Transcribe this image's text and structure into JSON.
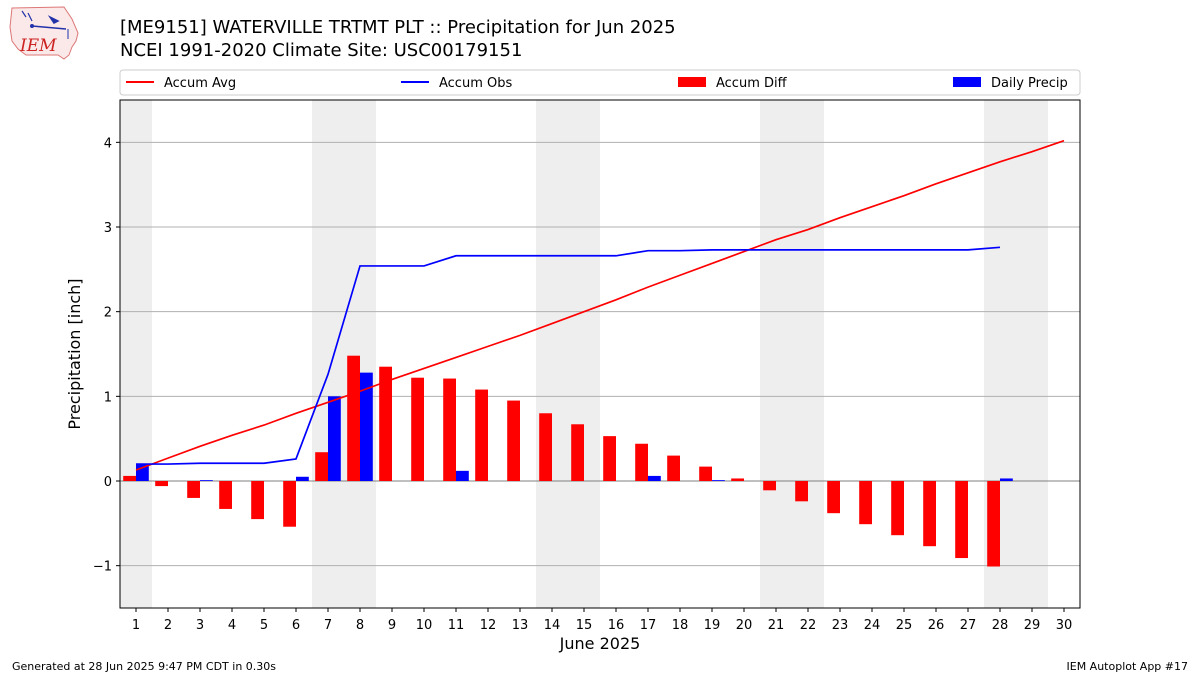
{
  "title_line1": "[ME9151] WATERVILLE TRTMT PLT :: Precipitation for Jun 2025",
  "title_line2": "NCEI 1991-2020 Climate Site: USC00179151",
  "footer_left": "Generated at 28 Jun 2025 9:47 PM CDT in 0.30s",
  "footer_right": "IEM Autoplot App #17",
  "logo_text": "IEM",
  "colors": {
    "accum_avg": "#ff0000",
    "accum_obs": "#0000ff",
    "accum_diff": "#ff0000",
    "daily_precip": "#0000ff",
    "weekend_band": "#eeeeee",
    "grid": "#b0b0b0"
  },
  "chart_data": {
    "type": "bar",
    "xlabel": "June 2025",
    "ylabel": "Precipitation [inch]",
    "xlim": [
      0.5,
      30.5
    ],
    "ylim": [
      -1.5,
      4.5
    ],
    "yticks": [
      -1,
      0,
      1,
      2,
      3,
      4
    ],
    "ytick_labels": [
      "−1",
      "0",
      "1",
      "2",
      "3",
      "4"
    ],
    "days": [
      1,
      2,
      3,
      4,
      5,
      6,
      7,
      8,
      9,
      10,
      11,
      12,
      13,
      14,
      15,
      16,
      17,
      18,
      19,
      20,
      21,
      22,
      23,
      24,
      25,
      26,
      27,
      28,
      29,
      30
    ],
    "weekend_days": [
      1,
      7,
      8,
      14,
      15,
      21,
      22,
      28,
      29
    ],
    "grid": "horizontal",
    "legend_position": "top",
    "legend": [
      "Accum Avg",
      "Accum Obs",
      "Accum Diff",
      "Daily Precip"
    ],
    "series": [
      {
        "name": "Accum Avg",
        "kind": "line",
        "values": [
          0.13,
          0.27,
          0.41,
          0.54,
          0.66,
          0.8,
          0.93,
          1.06,
          1.2,
          1.33,
          1.46,
          1.59,
          1.72,
          1.86,
          2.0,
          2.14,
          2.29,
          2.43,
          2.57,
          2.71,
          2.85,
          2.97,
          3.11,
          3.24,
          3.37,
          3.51,
          3.64,
          3.77,
          3.89,
          4.02
        ]
      },
      {
        "name": "Accum Obs",
        "kind": "line",
        "values": [
          0.2,
          0.2,
          0.21,
          0.21,
          0.21,
          0.26,
          1.26,
          2.54,
          2.54,
          2.54,
          2.66,
          2.66,
          2.66,
          2.66,
          2.66,
          2.66,
          2.72,
          2.72,
          2.73,
          2.73,
          2.73,
          2.73,
          2.73,
          2.73,
          2.73,
          2.73,
          2.73,
          2.76
        ]
      },
      {
        "name": "Accum Diff",
        "kind": "bar",
        "values": [
          0.06,
          -0.06,
          -0.2,
          -0.33,
          -0.45,
          -0.54,
          0.34,
          1.48,
          1.35,
          1.22,
          1.21,
          1.08,
          0.95,
          0.8,
          0.67,
          0.53,
          0.44,
          0.3,
          0.17,
          0.03,
          -0.11,
          -0.24,
          -0.38,
          -0.51,
          -0.64,
          -0.77,
          -0.91,
          -1.01
        ]
      },
      {
        "name": "Daily Precip",
        "kind": "bar",
        "values": [
          0.2,
          0.0,
          0.01,
          0.0,
          0.0,
          0.05,
          1.0,
          1.28,
          0.0,
          0.0,
          0.12,
          0.0,
          0.0,
          0.0,
          0.0,
          0.0,
          0.06,
          0.0,
          0.01,
          0.0,
          0.0,
          0.0,
          0.0,
          0.0,
          0.0,
          0.0,
          0.0,
          0.03
        ]
      }
    ]
  }
}
